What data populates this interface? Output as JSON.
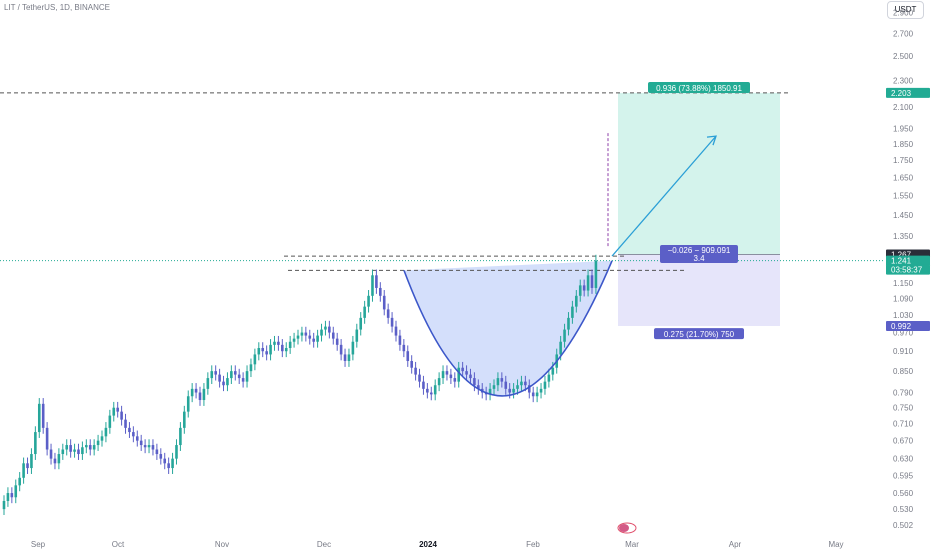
{
  "header": {
    "symbol_line": "LIT / TetherUS, 1D, BINANCE"
  },
  "price_axis": {
    "unit": "USDT",
    "labels": [
      "2.900",
      "2.700",
      "2.500",
      "2.300",
      "2.100",
      "1.950",
      "1.850",
      "1.750",
      "1.650",
      "1.550",
      "1.450",
      "1.350",
      "1.150",
      "1.090",
      "1.030",
      "0.970",
      "0.910",
      "0.850",
      "0.790",
      "0.750",
      "0.710",
      "0.670",
      "0.630",
      "0.595",
      "0.560",
      "0.530",
      "0.502"
    ]
  },
  "time_axis": {
    "labels": [
      {
        "text": "Sep",
        "bold": false
      },
      {
        "text": "Oct",
        "bold": false
      },
      {
        "text": "Nov",
        "bold": false
      },
      {
        "text": "Dec",
        "bold": false
      },
      {
        "text": "2024",
        "bold": true
      },
      {
        "text": "Feb",
        "bold": false
      },
      {
        "text": "Mar",
        "bold": false
      },
      {
        "text": "Apr",
        "bold": false
      },
      {
        "text": "May",
        "bold": false
      }
    ]
  },
  "price_tags": [
    {
      "text": "2.203",
      "color": "#22ab94"
    },
    {
      "text": "1.267",
      "color": "#2a2e39"
    },
    {
      "text": "1.241",
      "color": "#22ab94"
    },
    {
      "text": "03:58:37",
      "color": "#22ab94"
    },
    {
      "text": "0.992",
      "color": "#5b5fc7"
    }
  ],
  "position": {
    "target_label": "0.936 (73.88%) 1850.91",
    "entry_label_1": "−0.026 − 909.091",
    "entry_label_2": "3.4",
    "stop_label": "0.275 (21.70%) 750"
  },
  "colors": {
    "up": "#26a69a",
    "down": "#5b5fc7",
    "target_fill": "#d4f3ec",
    "stop_fill": "#e6e5fa",
    "cup_fill": "#cfdcfb",
    "cup_line": "#3c57c9",
    "arrow": "#2b9fd6",
    "target_tag": "#22ab94",
    "stop_tag": "#5b5fc7"
  },
  "chart_data": {
    "type": "candlestick",
    "x_start": "2023-08-22",
    "interval": "1D",
    "ylim": [
      0.502,
      2.95
    ],
    "close": [
      0.545,
      0.56,
      0.552,
      0.575,
      0.59,
      0.62,
      0.61,
      0.64,
      0.69,
      0.76,
      0.7,
      0.65,
      0.63,
      0.62,
      0.64,
      0.65,
      0.66,
      0.645,
      0.65,
      0.64,
      0.655,
      0.66,
      0.65,
      0.66,
      0.67,
      0.68,
      0.7,
      0.73,
      0.75,
      0.74,
      0.72,
      0.7,
      0.69,
      0.68,
      0.67,
      0.66,
      0.655,
      0.66,
      0.65,
      0.64,
      0.63,
      0.62,
      0.61,
      0.63,
      0.66,
      0.7,
      0.74,
      0.78,
      0.8,
      0.79,
      0.77,
      0.8,
      0.83,
      0.85,
      0.84,
      0.82,
      0.81,
      0.83,
      0.85,
      0.84,
      0.83,
      0.82,
      0.85,
      0.87,
      0.9,
      0.92,
      0.91,
      0.9,
      0.93,
      0.94,
      0.93,
      0.91,
      0.92,
      0.94,
      0.95,
      0.96,
      0.97,
      0.96,
      0.95,
      0.94,
      0.96,
      0.98,
      0.99,
      0.97,
      0.95,
      0.93,
      0.9,
      0.88,
      0.9,
      0.94,
      0.98,
      1.02,
      1.06,
      1.1,
      1.18,
      1.13,
      1.1,
      1.05,
      1.02,
      0.99,
      0.96,
      0.93,
      0.91,
      0.88,
      0.86,
      0.84,
      0.82,
      0.8,
      0.79,
      0.785,
      0.81,
      0.83,
      0.85,
      0.84,
      0.83,
      0.82,
      0.86,
      0.85,
      0.84,
      0.83,
      0.81,
      0.8,
      0.79,
      0.785,
      0.8,
      0.81,
      0.83,
      0.82,
      0.8,
      0.79,
      0.8,
      0.81,
      0.82,
      0.81,
      0.79,
      0.78,
      0.79,
      0.8,
      0.82,
      0.84,
      0.86,
      0.9,
      0.94,
      0.98,
      1.02,
      1.06,
      1.1,
      1.14,
      1.12,
      1.18,
      1.13,
      1.241
    ]
  }
}
